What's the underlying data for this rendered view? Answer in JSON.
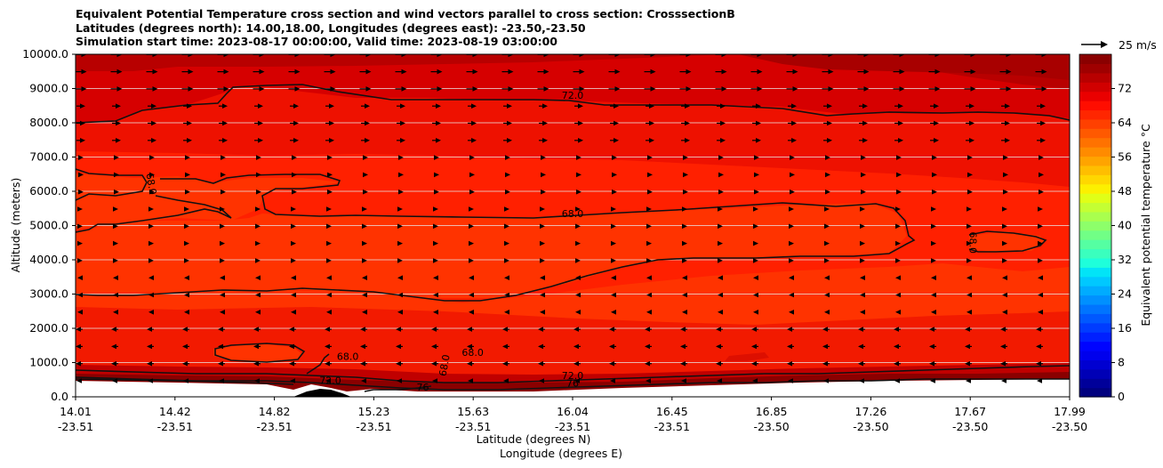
{
  "title": {
    "line1": "Equivalent Potential Temperature cross section and wind vectors parallel to cross section: CrosssectionB",
    "line2": "Latitudes (degrees north): 14.00,18.00, Longitudes (degrees east): -23.50,-23.50",
    "line3": "Simulation start time: 2023-08-17 00:00:00, Valid time: 2023-08-19 03:00:00"
  },
  "chart_data": {
    "type": "heatmap",
    "title": "Equivalent Potential Temperature cross section and wind vectors parallel to cross section: CrosssectionB",
    "ylabel": "Altitude (meters)",
    "xlabel": "Latitude (degrees N)",
    "xlabel2": "Longitude (degrees E)",
    "colorbar_label": "Equivalent potential temperature °C",
    "quiver_key": "25 m/s",
    "ylim": [
      0,
      10000
    ],
    "y_ticks": [
      "0.0",
      "1000.0",
      "2000.0",
      "3000.0",
      "4000.0",
      "5000.0",
      "6000.0",
      "7000.0",
      "8000.0",
      "9000.0",
      "10000.0"
    ],
    "x_ticks_lat": [
      "14.01",
      "14.42",
      "14.82",
      "15.23",
      "15.63",
      "16.04",
      "16.45",
      "16.85",
      "17.26",
      "17.67",
      "17.99"
    ],
    "x_ticks_lon": [
      "-23.51",
      "-23.51",
      "-23.51",
      "-23.51",
      "-23.51",
      "-23.51",
      "-23.51",
      "-23.50",
      "-23.50",
      "-23.50",
      "-23.50"
    ],
    "colorbar_ticks": [
      "0",
      "8",
      "16",
      "24",
      "32",
      "40",
      "48",
      "56",
      "64",
      "72"
    ],
    "colorbar_range": [
      0,
      80
    ],
    "contour_labels": [
      {
        "text": "72.0",
        "lat": 16.0,
        "alt": 8700,
        "rotate": 0
      },
      {
        "text": "68.0",
        "lat": 16.0,
        "alt": 5250,
        "rotate": 0
      },
      {
        "text": "68.0",
        "lat": 14.3,
        "alt": 6200,
        "rotate": 80
      },
      {
        "text": "68.0",
        "lat": 17.59,
        "alt": 4500,
        "rotate": 90
      },
      {
        "text": "68.0",
        "lat": 15.1,
        "alt": 1080,
        "rotate": 0
      },
      {
        "text": "68.0",
        "lat": 15.6,
        "alt": 1200,
        "rotate": 0
      },
      {
        "text": "68.0",
        "lat": 15.5,
        "alt": 900,
        "rotate": -80
      },
      {
        "text": "72.0",
        "lat": 16.0,
        "alt": 520,
        "rotate": 0
      },
      {
        "text": "72.0",
        "lat": 15.03,
        "alt": 380,
        "rotate": 0
      },
      {
        "text": "76",
        "lat": 15.4,
        "alt": 180,
        "rotate": 0
      },
      {
        "text": "76",
        "lat": 16.0,
        "alt": 300,
        "rotate": 0
      }
    ],
    "legend_placement": "right colorbar",
    "grid": "horizontal lines"
  }
}
